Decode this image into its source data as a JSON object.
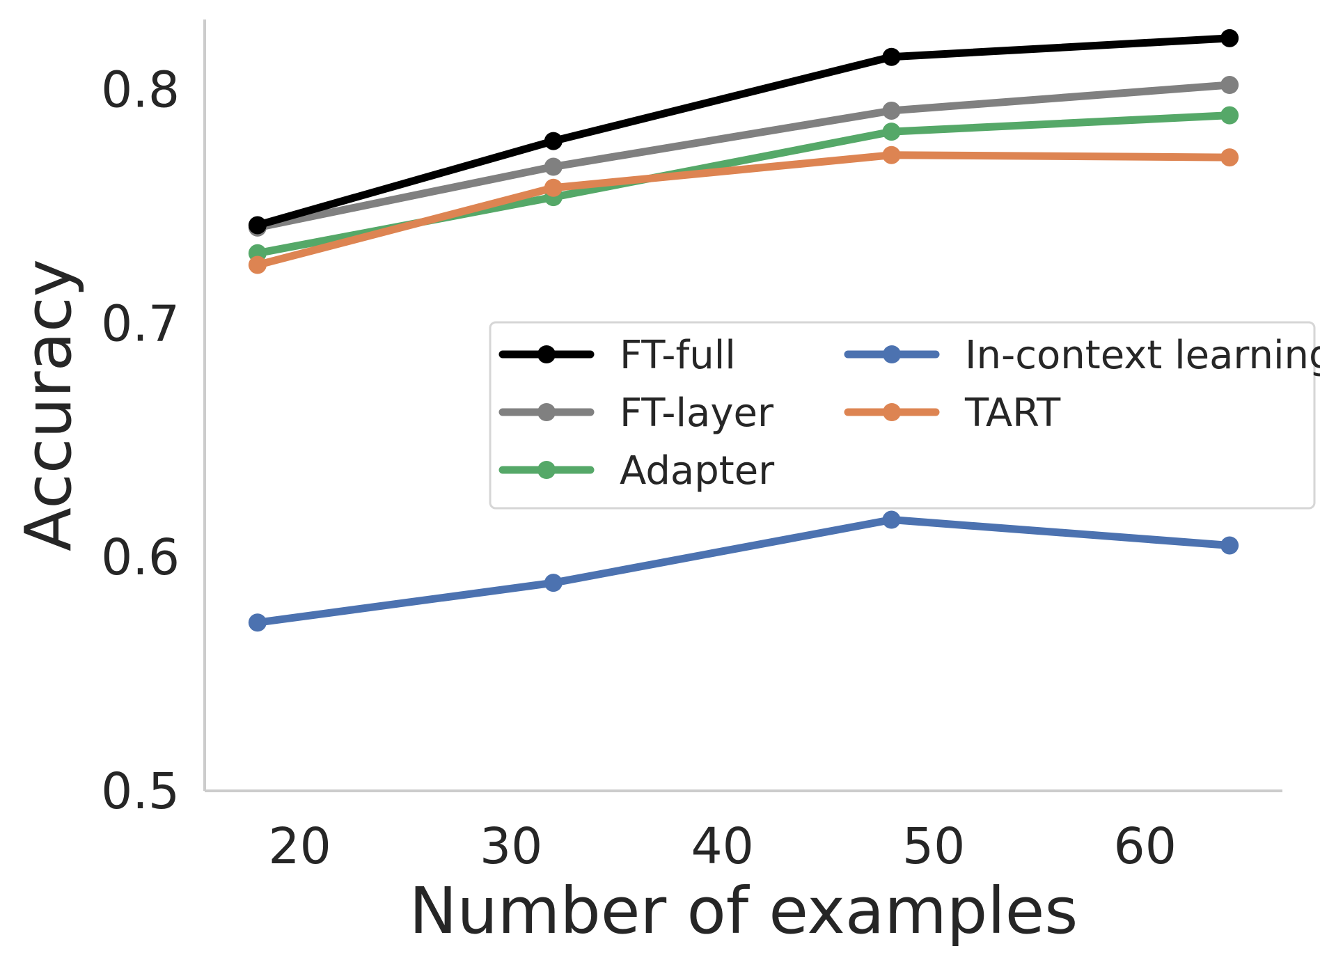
{
  "chart_data": {
    "type": "line",
    "title": "",
    "xlabel": "Number of examples",
    "ylabel": "Accuracy",
    "x": [
      18,
      32,
      48,
      64
    ],
    "xlim": [
      15.5,
      66.5
    ],
    "ylim": [
      0.5,
      0.83
    ],
    "xticks": [
      20,
      30,
      40,
      50,
      60
    ],
    "xtick_labels": [
      "20",
      "30",
      "40",
      "50",
      "60"
    ],
    "yticks": [
      0.5,
      0.6,
      0.7,
      0.8
    ],
    "ytick_labels": [
      "0.5",
      "0.6",
      "0.7",
      "0.8"
    ],
    "grid": false,
    "legend_position": "center-right",
    "series": [
      {
        "name": "FT-full",
        "color": "#000000",
        "values": [
          0.742,
          0.778,
          0.814,
          0.822
        ]
      },
      {
        "name": "FT-layer",
        "color": "#808080",
        "values": [
          0.741,
          0.767,
          0.791,
          0.802
        ]
      },
      {
        "name": "Adapter",
        "color": "#55a868",
        "values": [
          0.73,
          0.754,
          0.782,
          0.789
        ]
      },
      {
        "name": "In-context learning",
        "color": "#4c72b0",
        "values": [
          0.572,
          0.589,
          0.616,
          0.605
        ]
      },
      {
        "name": "TART",
        "color": "#dd8452",
        "values": [
          0.725,
          0.758,
          0.772,
          0.771
        ]
      }
    ],
    "legend_order": [
      "FT-full",
      "FT-layer",
      "Adapter",
      "In-context learning",
      "TART"
    ]
  }
}
